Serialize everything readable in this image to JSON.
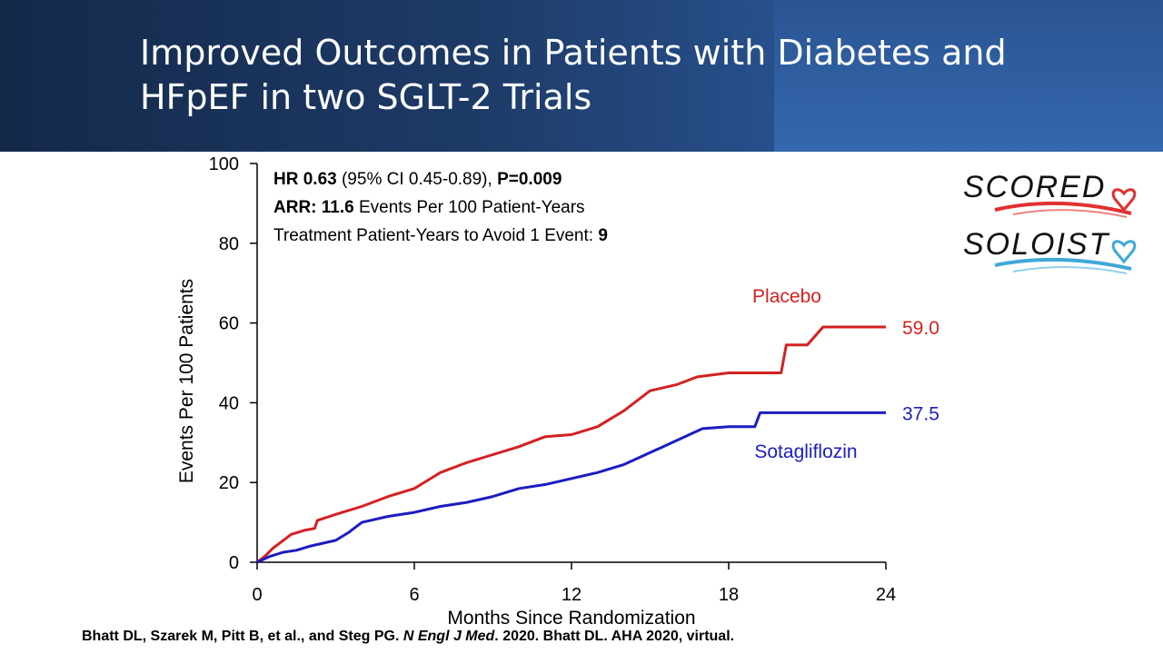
{
  "slide": {
    "title": "Improved Outcomes in Patients with Diabetes and HFpEF in two SGLT-2 Trials",
    "citation": {
      "authors": "Bhatt DL, Szarek M, Pitt B, et al., and Steg PG.",
      "journal": "N Engl J Med",
      "rest": ". 2020. Bhatt DL. AHA 2020, virtual."
    },
    "logos": [
      "SCORED",
      "SOLOIST"
    ]
  },
  "annotation": {
    "line1_hr_label": "HR 0.63",
    "line1_ci": " (95% CI 0.45-0.89), ",
    "line1_p": "P=0.009",
    "line2_arr_label": "ARR: 11.6",
    "line2_rest": " Events Per 100 Patient-Years",
    "line3_text": "Treatment Patient-Years  to Avoid 1 Event: ",
    "line3_value": "9"
  },
  "colors": {
    "placebo": "#d42020",
    "sotagliflozin": "#1c1cc0",
    "axis": "#000000"
  },
  "chart_data": {
    "type": "line",
    "xlabel": "Months Since Randomization",
    "ylabel": "Events Per 100 Patients",
    "xlim": [
      0,
      24
    ],
    "ylim": [
      0,
      100
    ],
    "xticks": [
      0,
      6,
      12,
      18,
      24
    ],
    "yticks": [
      0,
      20,
      40,
      60,
      80,
      100
    ],
    "series": [
      {
        "name": "Placebo",
        "color": "#d42020",
        "end_label": "59.0",
        "x": [
          0,
          0.3,
          0.6,
          1.0,
          1.3,
          1.8,
          2.2,
          2.3,
          3.0,
          4.0,
          5.0,
          6.0,
          6.5,
          7.0,
          8.0,
          9.0,
          10.0,
          11.0,
          12.0,
          13.0,
          14.0,
          14.8,
          15.0,
          16.0,
          16.8,
          18.0,
          20.0,
          20.2,
          21.0,
          21.6,
          24.0
        ],
        "y": [
          0,
          1.5,
          3.5,
          5.5,
          7,
          8,
          8.5,
          10.5,
          12,
          14,
          16.5,
          18.5,
          20.5,
          22.5,
          25,
          27,
          29,
          31.5,
          32,
          34,
          38,
          42,
          43,
          44.5,
          46.5,
          47.5,
          47.5,
          54.5,
          54.5,
          59,
          59
        ]
      },
      {
        "name": "Sotagliflozin",
        "color": "#1c1cc0",
        "end_label": "37.5",
        "x": [
          0,
          0.5,
          1.0,
          1.5,
          2.0,
          3.0,
          3.5,
          4.0,
          5.0,
          6.0,
          7.0,
          8.0,
          9.0,
          10.0,
          11.0,
          12.0,
          13.0,
          14.0,
          15.0,
          15.5,
          16.0,
          17.0,
          18.0,
          19.0,
          19.2,
          24.0
        ],
        "y": [
          0,
          1.5,
          2.5,
          3.0,
          4.0,
          5.5,
          7.5,
          10,
          11.5,
          12.5,
          14,
          15,
          16.5,
          18.5,
          19.5,
          21,
          22.5,
          24.5,
          27.5,
          29,
          30.5,
          33.5,
          34,
          34,
          37.5,
          37.5
        ]
      }
    ]
  }
}
